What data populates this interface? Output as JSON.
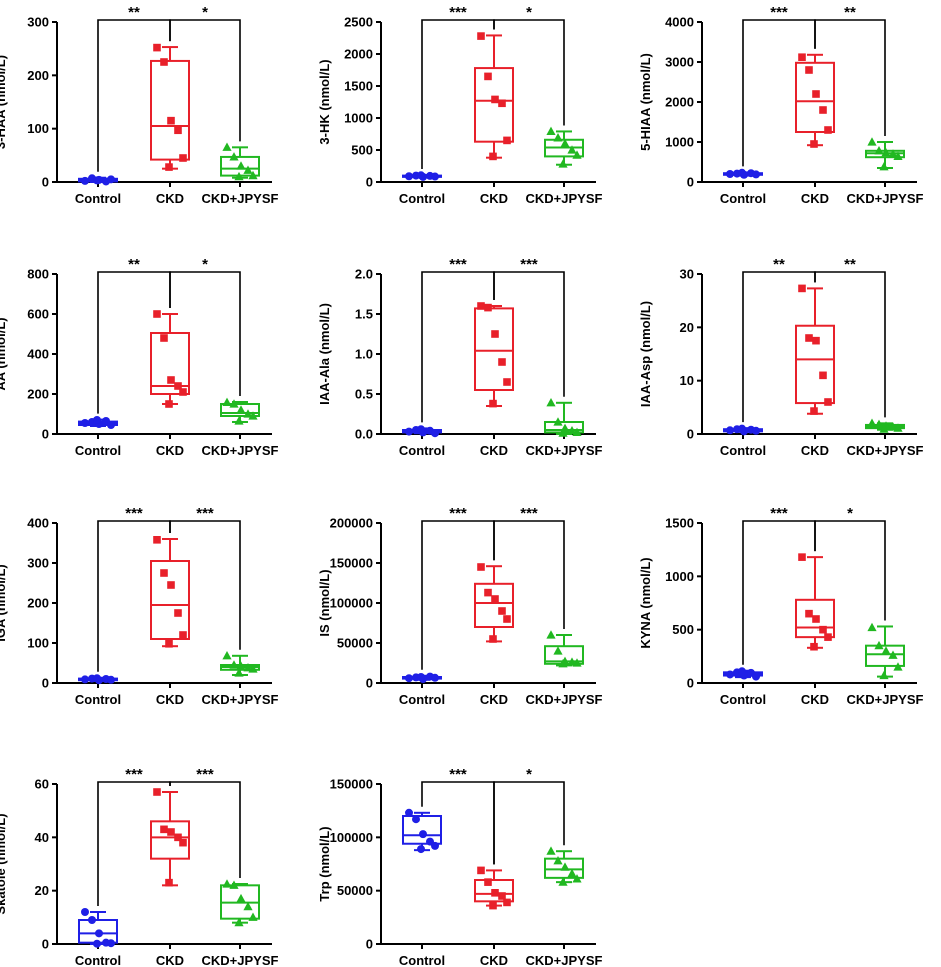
{
  "colors": {
    "Control": "#1f1fe6",
    "CKD": "#e8202a",
    "CKD+JPYSF": "#21b821"
  },
  "categories": [
    "Control",
    "CKD",
    "CKD+JPYSF"
  ],
  "chart_data": [
    {
      "type": "box",
      "ylabel": "3-HAA (nmol/L)",
      "ylim": [
        0,
        300
      ],
      "yticks": [
        "0",
        "100",
        "200",
        "300"
      ],
      "categories": [
        "Control",
        "CKD",
        "CKD+JPYSF"
      ],
      "boxes": [
        {
          "min": 0,
          "q1": 1,
          "median": 3,
          "q3": 6,
          "max": 8
        },
        {
          "min": 25,
          "q1": 42,
          "median": 105,
          "q3": 227,
          "max": 253
        },
        {
          "min": 8,
          "q1": 12,
          "median": 25,
          "q3": 47,
          "max": 65
        }
      ],
      "points": [
        [
          2,
          7,
          4,
          1,
          5,
          3
        ],
        [
          252,
          225,
          115,
          97,
          45,
          28
        ],
        [
          65,
          47,
          30,
          22,
          12,
          10
        ]
      ],
      "significance": [
        "**",
        "*"
      ]
    },
    {
      "type": "box",
      "ylabel": "3-HK (nmol/L)",
      "ylim": [
        0,
        2500
      ],
      "yticks": [
        "0",
        "500",
        "1000",
        "1500",
        "2000",
        "2500"
      ],
      "categories": [
        "Control",
        "CKD",
        "CKD+JPYSF"
      ],
      "boxes": [
        {
          "min": 70,
          "q1": 80,
          "median": 90,
          "q3": 100,
          "max": 110
        },
        {
          "min": 380,
          "q1": 630,
          "median": 1270,
          "q3": 1780,
          "max": 2290
        },
        {
          "min": 270,
          "q1": 400,
          "median": 540,
          "q3": 660,
          "max": 790
        }
      ],
      "points": [
        [
          90,
          100,
          80,
          95,
          85,
          105
        ],
        [
          2280,
          1650,
          1290,
          1230,
          650,
          400
        ],
        [
          790,
          690,
          600,
          500,
          420,
          280
        ]
      ],
      "significance": [
        "***",
        "*"
      ]
    },
    {
      "type": "box",
      "ylabel": "5-HIAA (nmol/L)",
      "ylim": [
        0,
        4000
      ],
      "yticks": [
        "0",
        "1000",
        "2000",
        "3000",
        "4000"
      ],
      "categories": [
        "Control",
        "CKD",
        "CKD+JPYSF"
      ],
      "boxes": [
        {
          "min": 160,
          "q1": 180,
          "median": 200,
          "q3": 220,
          "max": 240
        },
        {
          "min": 920,
          "q1": 1250,
          "median": 2020,
          "q3": 2980,
          "max": 3180
        },
        {
          "min": 350,
          "q1": 620,
          "median": 720,
          "q3": 780,
          "max": 1000
        }
      ],
      "points": [
        [
          200,
          210,
          180,
          220,
          190,
          230
        ],
        [
          3120,
          2800,
          2200,
          1800,
          1300,
          950
        ],
        [
          1000,
          780,
          730,
          700,
          640,
          380
        ]
      ],
      "significance": [
        "***",
        "**"
      ]
    },
    {
      "type": "box",
      "ylabel": "AA (nmol/L)",
      "ylim": [
        0,
        800
      ],
      "yticks": [
        "0",
        "200",
        "400",
        "600",
        "800"
      ],
      "categories": [
        "Control",
        "CKD",
        "CKD+JPYSF"
      ],
      "boxes": [
        {
          "min": 40,
          "q1": 45,
          "median": 55,
          "q3": 62,
          "max": 72
        },
        {
          "min": 150,
          "q1": 200,
          "median": 240,
          "q3": 505,
          "max": 600
        },
        {
          "min": 60,
          "q1": 90,
          "median": 105,
          "q3": 150,
          "max": 160
        }
      ],
      "points": [
        [
          55,
          60,
          50,
          65,
          45,
          70
        ],
        [
          600,
          480,
          270,
          240,
          210,
          150
        ],
        [
          158,
          150,
          120,
          100,
          90,
          65
        ]
      ],
      "significance": [
        "**",
        "*"
      ]
    },
    {
      "type": "box",
      "ylabel": "IAA-Ala (nmol/L)",
      "ylim": [
        0,
        2.0
      ],
      "yticks": [
        "0.0",
        "0.5",
        "1.0",
        "1.5",
        "2.0"
      ],
      "categories": [
        "Control",
        "CKD",
        "CKD+JPYSF"
      ],
      "boxes": [
        {
          "min": 0.01,
          "q1": 0.02,
          "median": 0.03,
          "q3": 0.05,
          "max": 0.07
        },
        {
          "min": 0.35,
          "q1": 0.55,
          "median": 1.04,
          "q3": 1.57,
          "max": 1.6
        },
        {
          "min": 0.0,
          "q1": 0.02,
          "median": 0.05,
          "q3": 0.15,
          "max": 0.39
        }
      ],
      "points": [
        [
          0.03,
          0.05,
          0.02,
          0.04,
          0.01,
          0.06
        ],
        [
          1.6,
          1.58,
          1.25,
          0.9,
          0.65,
          0.38
        ],
        [
          0.39,
          0.15,
          0.07,
          0.04,
          0.02,
          0.01
        ]
      ],
      "significance": [
        "***",
        "***"
      ]
    },
    {
      "type": "box",
      "ylabel": "IAA-Asp (nmol/L)",
      "ylim": [
        0,
        30
      ],
      "yticks": [
        "0",
        "10",
        "20",
        "30"
      ],
      "categories": [
        "Control",
        "CKD",
        "CKD+JPYSF"
      ],
      "boxes": [
        {
          "min": 0.4,
          "q1": 0.5,
          "median": 0.7,
          "q3": 0.9,
          "max": 1.1
        },
        {
          "min": 3.8,
          "q1": 5.8,
          "median": 14,
          "q3": 20.3,
          "max": 27.3
        },
        {
          "min": 0.8,
          "q1": 1.1,
          "median": 1.4,
          "q3": 1.7,
          "max": 2.0
        }
      ],
      "points": [
        [
          0.7,
          0.9,
          0.5,
          0.8,
          0.6,
          1.0
        ],
        [
          27.3,
          18,
          17.5,
          11,
          6,
          4.3
        ],
        [
          2.0,
          1.8,
          1.5,
          1.3,
          1.1,
          0.9
        ]
      ],
      "significance": [
        "**",
        "**"
      ]
    },
    {
      "type": "box",
      "ylabel": "IGA (nmol/L)",
      "ylim": [
        0,
        400
      ],
      "yticks": [
        "0",
        "100",
        "200",
        "300",
        "400"
      ],
      "categories": [
        "Control",
        "CKD",
        "CKD+JPYSF"
      ],
      "boxes": [
        {
          "min": 5,
          "q1": 7,
          "median": 9,
          "q3": 11,
          "max": 13
        },
        {
          "min": 92,
          "q1": 110,
          "median": 195,
          "q3": 305,
          "max": 360
        },
        {
          "min": 20,
          "q1": 33,
          "median": 40,
          "q3": 45,
          "max": 68
        }
      ],
      "points": [
        [
          9,
          11,
          7,
          10,
          8,
          12
        ],
        [
          358,
          275,
          245,
          175,
          120,
          98
        ],
        [
          68,
          45,
          42,
          38,
          35,
          25
        ]
      ],
      "significance": [
        "***",
        "***"
      ]
    },
    {
      "type": "box",
      "ylabel": "IS (nmol/L)",
      "ylim": [
        0,
        200000
      ],
      "yticks": [
        "0",
        "50000",
        "100000",
        "150000",
        "200000"
      ],
      "categories": [
        "Control",
        "CKD",
        "CKD+JPYSF"
      ],
      "boxes": [
        {
          "min": 4000,
          "q1": 5500,
          "median": 6500,
          "q3": 7500,
          "max": 9000
        },
        {
          "min": 52000,
          "q1": 70000,
          "median": 100000,
          "q3": 124000,
          "max": 146000
        },
        {
          "min": 22000,
          "q1": 24000,
          "median": 27000,
          "q3": 46000,
          "max": 60000
        }
      ],
      "points": [
        [
          6000,
          7000,
          5000,
          8000,
          6500,
          7500
        ],
        [
          145000,
          113000,
          105000,
          90000,
          80000,
          55000
        ],
        [
          60000,
          40000,
          27000,
          26000,
          25000,
          24000
        ]
      ],
      "significance": [
        "***",
        "***"
      ]
    },
    {
      "type": "box",
      "ylabel": "KYNA (nmol/L)",
      "ylim": [
        0,
        1500
      ],
      "yticks": [
        "0",
        "500",
        "1000",
        "1500"
      ],
      "categories": [
        "Control",
        "CKD",
        "CKD+JPYSF"
      ],
      "boxes": [
        {
          "min": 55,
          "q1": 70,
          "median": 85,
          "q3": 100,
          "max": 115
        },
        {
          "min": 330,
          "q1": 430,
          "median": 520,
          "q3": 780,
          "max": 1180
        },
        {
          "min": 60,
          "q1": 160,
          "median": 270,
          "q3": 350,
          "max": 530
        }
      ],
      "points": [
        [
          80,
          100,
          70,
          95,
          60,
          110
        ],
        [
          1180,
          650,
          600,
          500,
          430,
          340
        ],
        [
          520,
          350,
          300,
          260,
          150,
          70
        ]
      ],
      "significance": [
        "***",
        "*"
      ]
    },
    {
      "type": "box",
      "ylabel": "Skatole (nmol/L)",
      "ylim": [
        0,
        60
      ],
      "yticks": [
        "0",
        "20",
        "40",
        "60"
      ],
      "categories": [
        "Control",
        "CKD",
        "CKD+JPYSF"
      ],
      "boxes": [
        {
          "min": 0,
          "q1": 0.5,
          "median": 4,
          "q3": 9,
          "max": 12
        },
        {
          "min": 22,
          "q1": 32,
          "median": 40,
          "q3": 46,
          "max": 57
        },
        {
          "min": 8,
          "q1": 9.5,
          "median": 15.5,
          "q3": 22,
          "max": 22.5
        }
      ],
      "points": [
        [
          12,
          9,
          4,
          0.5,
          0.3,
          0.1
        ],
        [
          57,
          43,
          42,
          40,
          38,
          23
        ],
        [
          22.5,
          22,
          17,
          14,
          10,
          8
        ]
      ],
      "significance": [
        "***",
        "***"
      ]
    },
    {
      "type": "box",
      "ylabel": "Trp (nmol/L)",
      "ylim": [
        0,
        150000
      ],
      "yticks": [
        "0",
        "50000",
        "100000",
        "150000"
      ],
      "categories": [
        "Control",
        "CKD",
        "CKD+JPYSF"
      ],
      "boxes": [
        {
          "min": 88000,
          "q1": 94000,
          "median": 102000,
          "q3": 120000,
          "max": 123000
        },
        {
          "min": 36000,
          "q1": 40000,
          "median": 47000,
          "q3": 60000,
          "max": 69000
        },
        {
          "min": 58000,
          "q1": 62000,
          "median": 70000,
          "q3": 80000,
          "max": 87000
        }
      ],
      "points": [
        [
          123000,
          117000,
          103000,
          96000,
          92000,
          89000
        ],
        [
          69000,
          58000,
          48000,
          45000,
          39000,
          36000
        ],
        [
          87000,
          78000,
          72000,
          66000,
          61000,
          58000
        ]
      ],
      "significance": [
        "***",
        "*"
      ]
    }
  ]
}
